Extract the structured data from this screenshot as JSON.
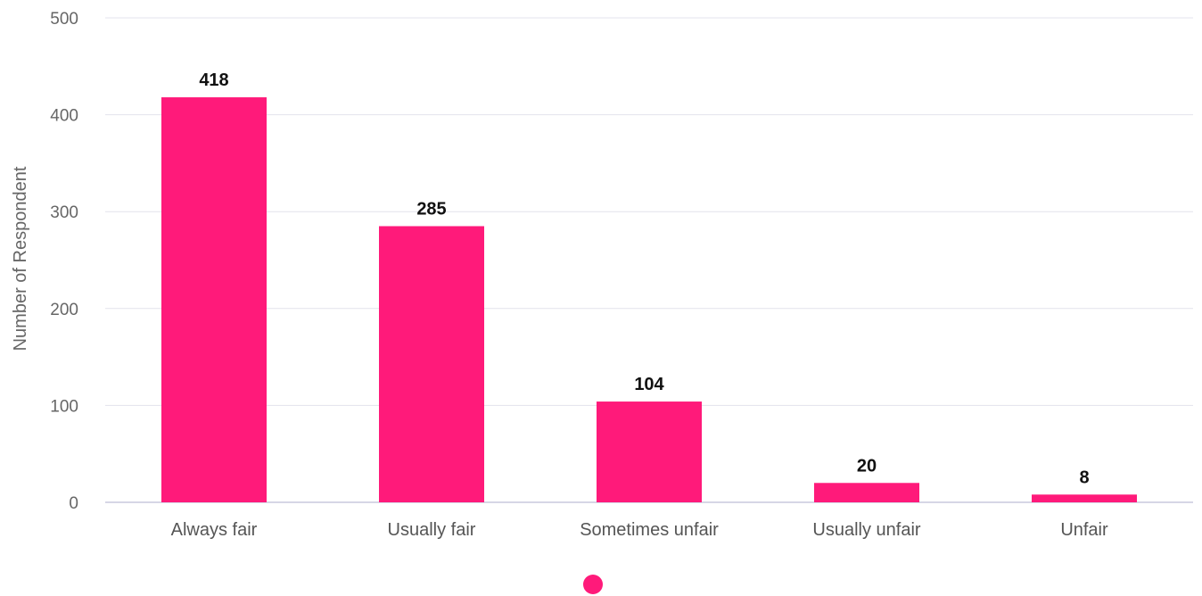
{
  "chart_data": {
    "type": "bar",
    "title": "",
    "xlabel": "",
    "ylabel": "Number of Respondent",
    "categories": [
      "Always fair",
      "Usually fair",
      "Sometimes unfair",
      "Usually unfair",
      "Unfair"
    ],
    "series": [
      {
        "values": [
          418,
          285,
          104,
          20,
          8
        ],
        "color": "#ff1a7a"
      }
    ],
    "data_labels": [
      "418",
      "285",
      "104",
      "20",
      "8"
    ],
    "ylim": [
      0,
      500
    ],
    "yticks": [
      0,
      100,
      200,
      300,
      400,
      500
    ],
    "ytick_labels": [
      "0",
      "100",
      "200",
      "300",
      "400",
      "500"
    ],
    "grid": true,
    "gridline_color": "#e3e3ec",
    "axis_line_color": "#c9c9de",
    "legend": {
      "position": "bottom",
      "marker": "circle",
      "color": "#ff1a7a"
    }
  }
}
